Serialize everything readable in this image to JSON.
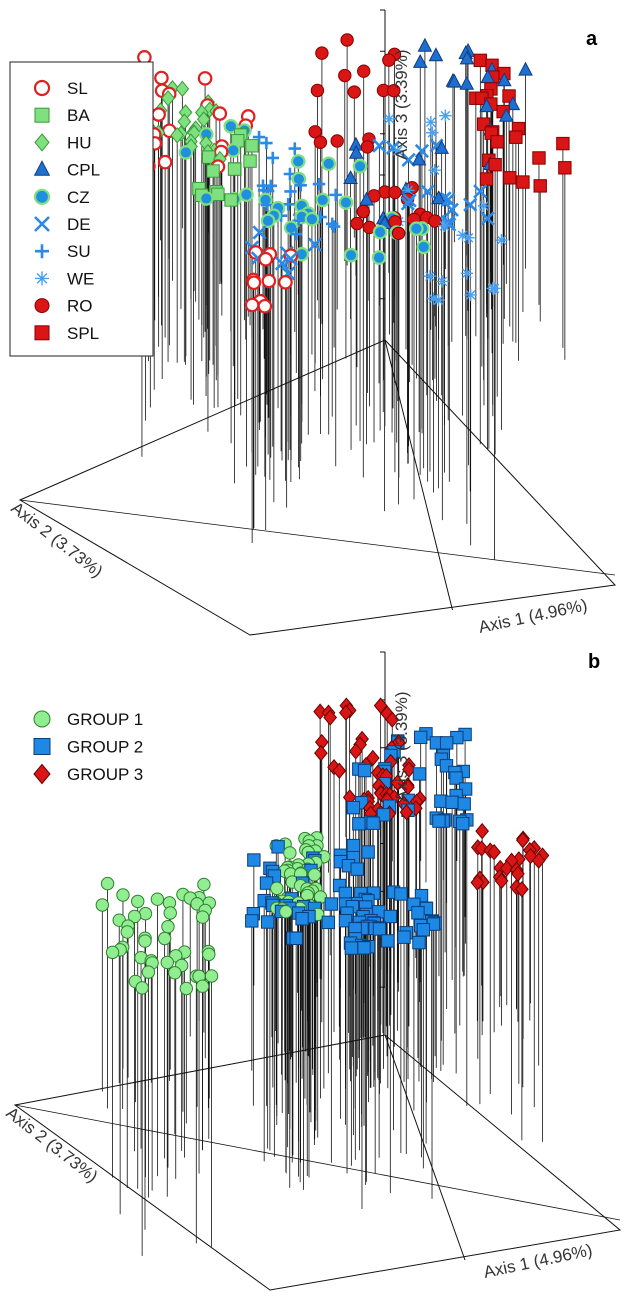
{
  "chart_data": [
    {
      "panel": "a",
      "type": "scatter",
      "projection": "3d",
      "xlabel": "Axis 1 (4.96%)",
      "ylabel": "Axis 2 (3.73%)",
      "zlabel": "Axis 3 (3.39%)",
      "legend_placement": "top-left",
      "series": [
        {
          "name": "SL",
          "marker": "circle-outlined",
          "color": "#ffffff",
          "edge": "#e02020",
          "n": 34
        },
        {
          "name": "BA",
          "marker": "square",
          "color": "#7fe07f",
          "edge": "#3a9a3a",
          "n": 14
        },
        {
          "name": "HU",
          "marker": "diamond",
          "color": "#7fe07f",
          "edge": "#3a9a3a",
          "n": 24
        },
        {
          "name": "CPL",
          "marker": "triangle",
          "color": "#1f6fd1",
          "edge": "#0d3d80",
          "n": 28
        },
        {
          "name": "CZ",
          "marker": "circle-outlined",
          "color": "#1f8fe0",
          "edge": "#7fe07f",
          "n": 32
        },
        {
          "name": "DE",
          "marker": "x",
          "color": "#2a8ae8",
          "edge": "#2a8ae8",
          "n": 24
        },
        {
          "name": "SU",
          "marker": "plus",
          "color": "#2a8ae8",
          "edge": "#2a8ae8",
          "n": 22
        },
        {
          "name": "WE",
          "marker": "asterisk",
          "color": "#4aa0f0",
          "edge": "#4aa0f0",
          "n": 22
        },
        {
          "name": "RO",
          "marker": "circle",
          "color": "#d91515",
          "edge": "#8a0000",
          "n": 30
        },
        {
          "name": "SPL",
          "marker": "square",
          "color": "#d91515",
          "edge": "#8a0000",
          "n": 26
        }
      ],
      "tag": "a"
    },
    {
      "panel": "b",
      "type": "scatter",
      "projection": "3d",
      "xlabel": "Axis 1 (4.96%)",
      "ylabel": "Axis 2 (3.73%)",
      "zlabel": "Axis 3 (3.39%)",
      "legend_placement": "top-left",
      "series": [
        {
          "name": "GROUP 1",
          "marker": "circle",
          "color": "#90ee90",
          "edge": "#2f7f2f",
          "n": 90
        },
        {
          "name": "GROUP 2",
          "marker": "square",
          "color": "#1e88e5",
          "edge": "#0b3d7a",
          "n": 130
        },
        {
          "name": "GROUP 3",
          "marker": "diamond",
          "color": "#d91515",
          "edge": "#6a0000",
          "n": 75
        }
      ],
      "tag": "b"
    }
  ]
}
